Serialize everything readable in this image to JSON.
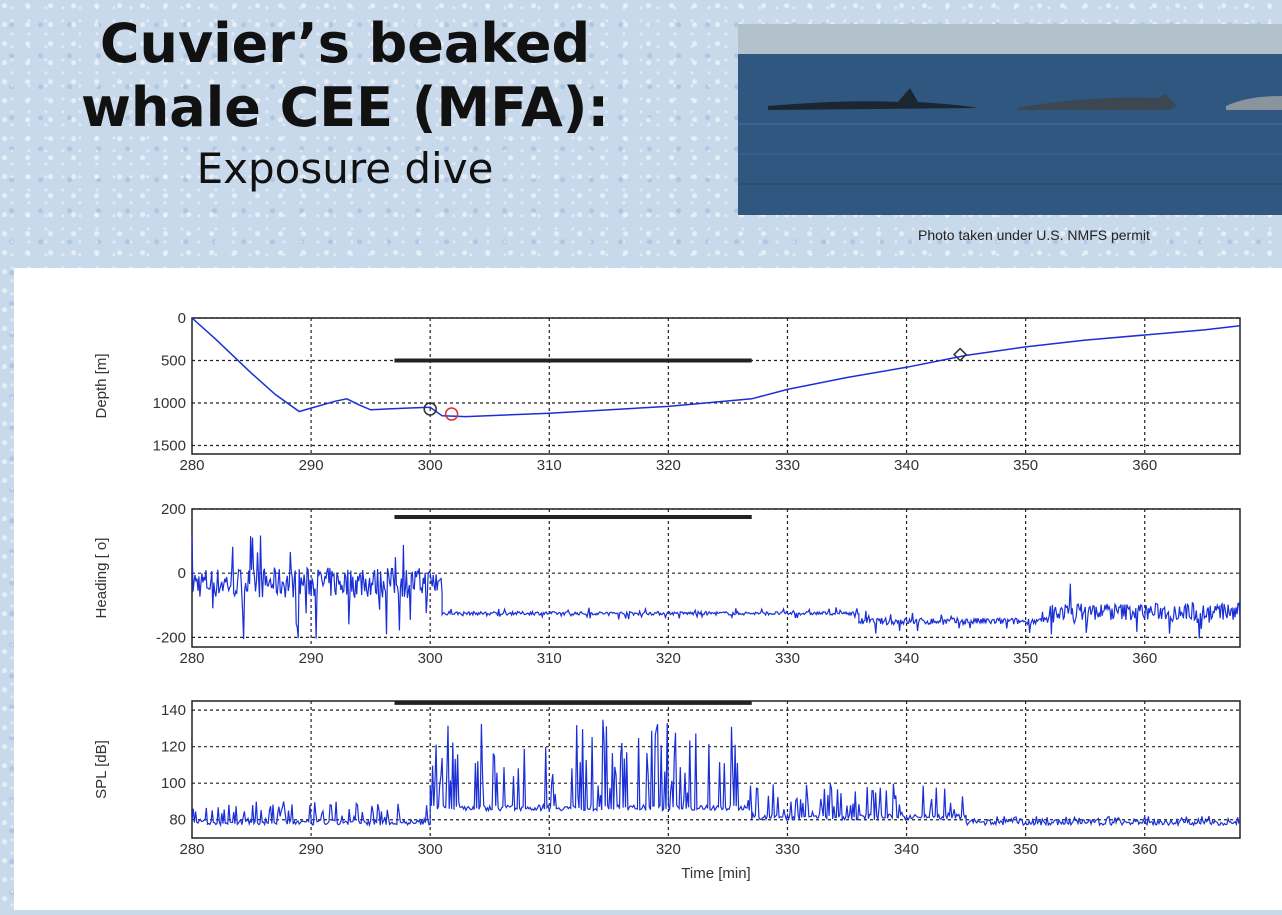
{
  "slide": {
    "title_line1": "Cuvier’s beaked",
    "title_line2": "whale CEE (MFA):",
    "subtitle": "Exposure dive",
    "photo_caption": "Photo taken under U.S. NMFS permit"
  },
  "colors": {
    "trace": "#1a2fd6",
    "exposure_bar": "#222222",
    "marker_dark": "#333333",
    "marker_red": "#e03030"
  },
  "chart_data": [
    {
      "type": "line",
      "ylabel": "Depth [m]",
      "xlabel": "",
      "xlim": [
        280,
        368
      ],
      "ylim": [
        1600,
        0
      ],
      "y_inverted": true,
      "xticks": [
        280,
        290,
        300,
        310,
        320,
        330,
        340,
        350,
        360
      ],
      "yticks": [
        0,
        500,
        1000,
        1500
      ],
      "grid": true,
      "series": [
        {
          "x": [
            280,
            282,
            285,
            287,
            289,
            290,
            292,
            293,
            294,
            295,
            298,
            300,
            301,
            303,
            310,
            320,
            327,
            330,
            335,
            340,
            345,
            350,
            355,
            360,
            365,
            368
          ],
          "y": [
            0,
            250,
            650,
            900,
            1100,
            1060,
            980,
            950,
            1020,
            1080,
            1060,
            1050,
            1150,
            1160,
            1120,
            1040,
            950,
            840,
            700,
            580,
            440,
            340,
            260,
            200,
            140,
            90
          ]
        }
      ],
      "markers": [
        {
          "x": 300,
          "y": 1070,
          "shape": "circle",
          "color": "dark"
        },
        {
          "x": 301.8,
          "y": 1130,
          "shape": "circle",
          "color": "red"
        },
        {
          "x": 344.5,
          "y": 430,
          "shape": "diamond",
          "color": "dark"
        }
      ],
      "exposure_bar": {
        "x": [
          297,
          327
        ],
        "y": 500
      }
    },
    {
      "type": "line",
      "ylabel": "Heading [ o]",
      "xlabel": "",
      "xlim": [
        280,
        368
      ],
      "ylim": [
        -230,
        200
      ],
      "xticks": [
        280,
        290,
        300,
        310,
        320,
        330,
        340,
        350,
        360
      ],
      "yticks": [
        -200,
        0,
        200
      ],
      "grid": true,
      "segments": [
        {
          "x": [
            280,
            301
          ],
          "mean": -30,
          "amp": 160
        },
        {
          "x": [
            301,
            336
          ],
          "mean": -125,
          "amp": 18
        },
        {
          "x": [
            336,
            352
          ],
          "mean": -150,
          "amp": 35
        },
        {
          "x": [
            352,
            368
          ],
          "mean": -120,
          "amp": 90
        }
      ],
      "exposure_bar": {
        "x": [
          297,
          327
        ],
        "y": 175
      }
    },
    {
      "type": "line",
      "ylabel": "SPL [dB]",
      "xlabel": "Time [min]",
      "xlim": [
        280,
        368
      ],
      "ylim": [
        70,
        145
      ],
      "xticks": [
        280,
        290,
        300,
        310,
        320,
        330,
        340,
        350,
        360
      ],
      "yticks": [
        80,
        100,
        120,
        140
      ],
      "grid": true,
      "segments": [
        {
          "x": [
            280,
            300
          ],
          "baseline": 77,
          "peak": 90
        },
        {
          "x": [
            300,
            327
          ],
          "baseline": 85,
          "peak": 135
        },
        {
          "x": [
            327,
            345
          ],
          "baseline": 80,
          "peak": 100
        },
        {
          "x": [
            345,
            368
          ],
          "baseline": 77,
          "peak": 82
        }
      ],
      "exposure_bar": {
        "x": [
          297,
          327
        ],
        "y": 144
      }
    }
  ]
}
